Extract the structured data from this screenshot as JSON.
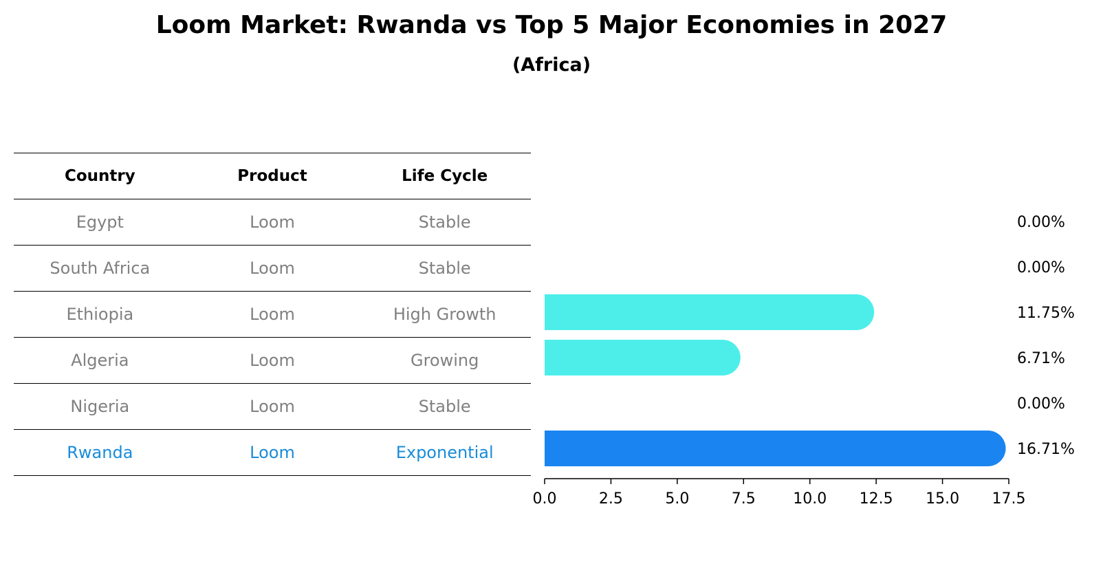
{
  "chart_data": {
    "type": "bar",
    "orientation": "horizontal",
    "title": "Loom Market: Rwanda vs Top 5 Major Economies in 2027",
    "subtitle": "(Africa)",
    "table": {
      "headers": [
        "Country",
        "Product",
        "Life Cycle"
      ],
      "rows": [
        {
          "country": "Egypt",
          "product": "Loom",
          "life_cycle": "Stable"
        },
        {
          "country": "South Africa",
          "product": "Loom",
          "life_cycle": "Stable"
        },
        {
          "country": "Ethiopia",
          "product": "Loom",
          "life_cycle": "High Growth"
        },
        {
          "country": "Algeria",
          "product": "Loom",
          "life_cycle": "Growing"
        },
        {
          "country": "Nigeria",
          "product": "Loom",
          "life_cycle": "Stable"
        },
        {
          "country": "Rwanda",
          "product": "Loom",
          "life_cycle": "Exponential"
        }
      ]
    },
    "categories": [
      "Egypt",
      "South Africa",
      "Ethiopia",
      "Algeria",
      "Nigeria",
      "Rwanda"
    ],
    "values": [
      0.0,
      0.0,
      11.75,
      6.71,
      0.0,
      16.71
    ],
    "value_labels": [
      "0.00%",
      "0.00%",
      "11.75%",
      "6.71%",
      "0.00%",
      "16.71%"
    ],
    "highlight": "Rwanda",
    "xlim": [
      0,
      17.5
    ],
    "xticks": [
      0.0,
      2.5,
      5.0,
      7.5,
      10.0,
      12.5,
      15.0,
      17.5
    ],
    "xtick_labels": [
      "0.0",
      "2.5",
      "5.0",
      "7.5",
      "10.0",
      "12.5",
      "15.0",
      "17.5"
    ],
    "colors": {
      "bar": "#4deeea",
      "highlight_bar": "#1a85f0",
      "highlight_text": "#1a8cd8",
      "muted_text": "#808080"
    }
  }
}
